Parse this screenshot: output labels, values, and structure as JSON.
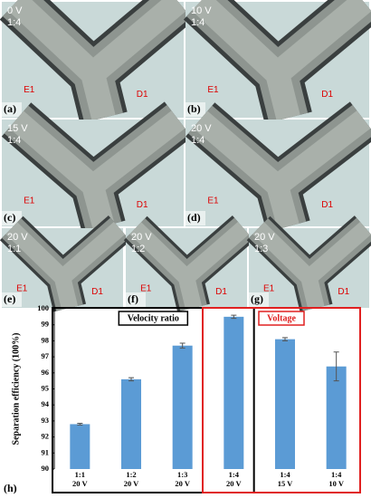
{
  "panels": [
    {
      "voltage": "0 V",
      "ratio": "1:4",
      "tag": "(a)",
      "inlet": "E1",
      "outlet": "D1"
    },
    {
      "voltage": "10 V",
      "ratio": "1:4",
      "tag": "(b)",
      "inlet": "E1",
      "outlet": "D1"
    },
    {
      "voltage": "15 V",
      "ratio": "1:4",
      "tag": "(c)",
      "inlet": "E1",
      "outlet": "D1"
    },
    {
      "voltage": "20 V",
      "ratio": "1:4",
      "tag": "(d)",
      "inlet": "E1",
      "outlet": "D1"
    },
    {
      "voltage": "20 V",
      "ratio": "1:1",
      "tag": "(e)",
      "inlet": "E1",
      "outlet": "D1"
    },
    {
      "voltage": "20 V",
      "ratio": "1:2",
      "tag": "(f)",
      "inlet": "E1",
      "outlet": "D1"
    },
    {
      "voltage": "20 V",
      "ratio": "1:3",
      "tag": "(g)",
      "inlet": "E1",
      "outlet": "D1"
    }
  ],
  "chart_data": {
    "type": "bar",
    "tag": "(h)",
    "y_label": "Separation efficiency (100%)",
    "categories": [
      [
        "1:1",
        "20 V"
      ],
      [
        "1:2",
        "20 V"
      ],
      [
        "1:3",
        "20 V"
      ],
      [
        "1:4",
        "20 V"
      ],
      [
        "1:4",
        "15 V"
      ],
      [
        "1:4",
        "10 V"
      ]
    ],
    "values": [
      92.8,
      95.6,
      97.7,
      99.5,
      98.1,
      96.4
    ],
    "errors": [
      0.05,
      0.1,
      0.15,
      0.1,
      0.1,
      0.9
    ],
    "color": "#5b9bd5",
    "ylim": [
      90,
      100
    ],
    "yticks": [
      90,
      91,
      92,
      93,
      94,
      95,
      96,
      97,
      98,
      99,
      100
    ],
    "groups": [
      {
        "label": "Velocity ratio",
        "color": "#000000"
      },
      {
        "label": "Voltage",
        "color": "#e02020"
      }
    ]
  }
}
